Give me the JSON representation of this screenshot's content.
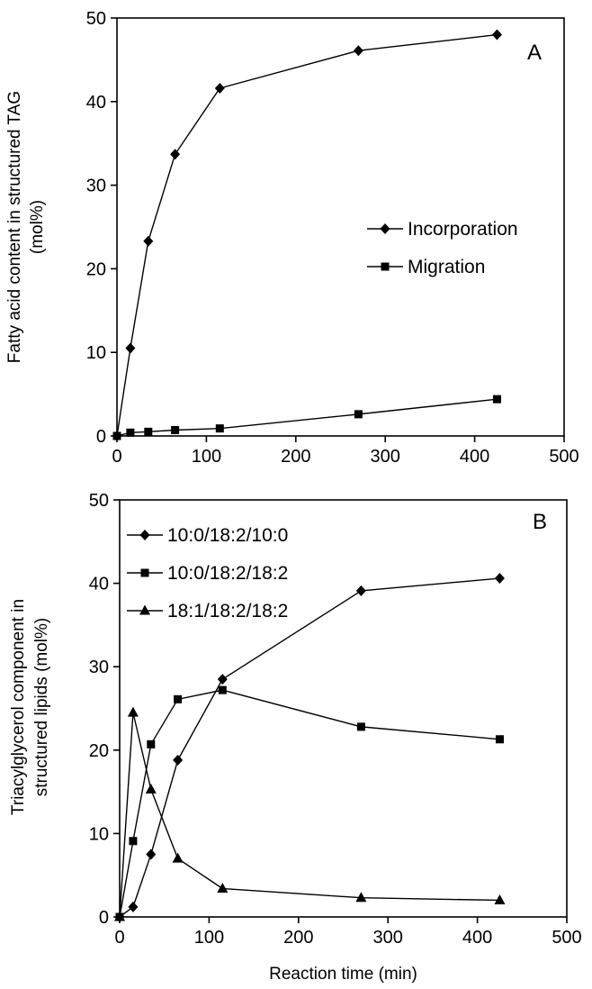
{
  "chart_data": [
    {
      "type": "line",
      "panel_label": "A",
      "title": "",
      "ylabel_lines": [
        "Fatty acid content in structured TAG",
        "(mol%)"
      ],
      "xlabel": "",
      "xlim": [
        0,
        500
      ],
      "ylim": [
        0,
        50
      ],
      "xticks": [
        0,
        100,
        200,
        300,
        400,
        500
      ],
      "yticks": [
        0,
        10,
        20,
        30,
        40,
        50
      ],
      "grid": false,
      "legend_position": "center-right",
      "series": [
        {
          "name": "Incorporation",
          "marker": "diamond",
          "x": [
            0,
            15,
            35,
            65,
            115,
            270,
            425
          ],
          "y": [
            0,
            10.5,
            23.3,
            33.7,
            41.6,
            46.1,
            48.0
          ]
        },
        {
          "name": "Migration",
          "marker": "square",
          "x": [
            0,
            15,
            35,
            65,
            115,
            270,
            425
          ],
          "y": [
            0,
            0.4,
            0.5,
            0.7,
            0.9,
            2.6,
            4.4
          ]
        }
      ]
    },
    {
      "type": "line",
      "panel_label": "B",
      "title": "",
      "ylabel_lines": [
        "Triacylglycerol component in",
        "structured lipids (mol%)"
      ],
      "xlabel": "Reaction time (min)",
      "xlim": [
        0,
        500
      ],
      "ylim": [
        0,
        50
      ],
      "xticks": [
        0,
        100,
        200,
        300,
        400,
        500
      ],
      "yticks": [
        0,
        10,
        20,
        30,
        40,
        50
      ],
      "grid": false,
      "legend_position": "top-left",
      "series": [
        {
          "name": "10:0/18:2/10:0",
          "marker": "diamond",
          "x": [
            0,
            15,
            35,
            65,
            115,
            270,
            425
          ],
          "y": [
            0,
            1.2,
            7.5,
            18.8,
            28.5,
            39.1,
            40.6
          ]
        },
        {
          "name": "10:0/18:2/18:2",
          "marker": "square",
          "x": [
            0,
            15,
            35,
            65,
            115,
            270,
            425
          ],
          "y": [
            0,
            9.1,
            20.7,
            26.1,
            27.2,
            22.8,
            21.3
          ]
        },
        {
          "name": "18:1/18:2/18:2",
          "marker": "triangle",
          "x": [
            0,
            15,
            35,
            65,
            115,
            270,
            425
          ],
          "y": [
            0,
            24.5,
            15.3,
            7.0,
            3.4,
            2.3,
            2.0
          ]
        }
      ]
    }
  ]
}
